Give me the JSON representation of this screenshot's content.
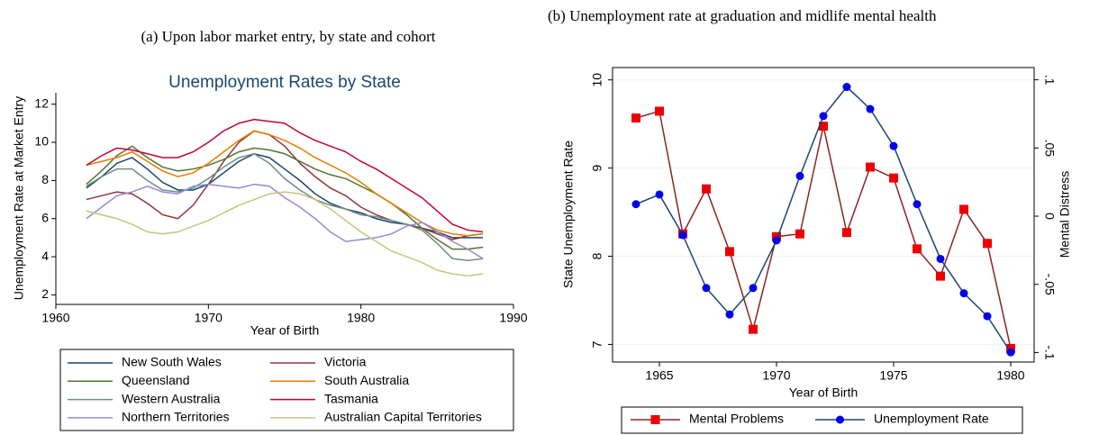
{
  "chart_data": [
    {
      "type": "line",
      "caption": "(a) Upon labor market entry, by state and cohort",
      "title": "Unemployment Rates by State",
      "x_label": "Year of Birth",
      "y_label": "Unemployment Rate at Market Entry",
      "xlim": [
        1960,
        1990
      ],
      "xticks": [
        1960,
        1970,
        1980,
        1990
      ],
      "ylim": [
        1.5,
        12.6
      ],
      "yticks": [
        2,
        4,
        6,
        8,
        10,
        12
      ],
      "grid": false,
      "x": [
        1962,
        1963,
        1964,
        1965,
        1966,
        1967,
        1968,
        1969,
        1970,
        1971,
        1972,
        1973,
        1974,
        1975,
        1976,
        1977,
        1978,
        1979,
        1980,
        1981,
        1982,
        1983,
        1984,
        1985,
        1986,
        1987,
        1988
      ],
      "series": [
        {
          "name": "New South Wales",
          "color": "#1a476f",
          "values": [
            7.6,
            8.2,
            8.9,
            9.2,
            8.6,
            7.9,
            7.5,
            7.5,
            7.8,
            8.4,
            9.0,
            9.4,
            9.2,
            8.6,
            8.0,
            7.3,
            6.8,
            6.5,
            6.3,
            6.0,
            5.8,
            5.7,
            5.5,
            5.3,
            5.0,
            5.0,
            5.0
          ]
        },
        {
          "name": "Victoria",
          "color": "#90353b",
          "values": [
            7.0,
            7.2,
            7.4,
            7.3,
            6.8,
            6.2,
            6.0,
            6.7,
            7.8,
            9.0,
            10.0,
            10.6,
            10.4,
            9.8,
            8.9,
            8.2,
            7.6,
            7.2,
            6.6,
            6.2,
            5.9,
            5.7,
            5.5,
            5.2,
            4.9,
            5.1,
            5.2
          ]
        },
        {
          "name": "Queensland",
          "color": "#55752f",
          "values": [
            7.8,
            8.5,
            9.3,
            9.8,
            9.2,
            8.7,
            8.5,
            8.6,
            8.8,
            9.1,
            9.5,
            9.7,
            9.6,
            9.4,
            9.0,
            8.6,
            8.3,
            8.1,
            7.7,
            7.3,
            6.8,
            6.2,
            5.5,
            4.9,
            4.4,
            4.4,
            4.5
          ]
        },
        {
          "name": "South Australia",
          "color": "#e37e00",
          "values": [
            8.8,
            9.0,
            9.2,
            9.5,
            9.0,
            8.5,
            8.2,
            8.4,
            8.9,
            9.5,
            10.1,
            10.6,
            10.4,
            10.1,
            9.7,
            9.2,
            8.8,
            8.4,
            7.9,
            7.3,
            6.8,
            6.3,
            5.8,
            5.4,
            5.2,
            5.1,
            5.2
          ]
        },
        {
          "name": "Western Australia",
          "color": "#6e8e84",
          "values": [
            7.7,
            8.2,
            8.6,
            8.6,
            8.0,
            7.5,
            7.4,
            7.6,
            8.1,
            8.7,
            9.2,
            9.4,
            8.9,
            8.1,
            7.5,
            7.0,
            6.7,
            6.5,
            6.2,
            6.1,
            5.9,
            5.7,
            5.4,
            4.7,
            3.9,
            3.8,
            3.9
          ]
        },
        {
          "name": "Tasmania",
          "color": "#c10534",
          "values": [
            8.8,
            9.3,
            9.7,
            9.6,
            9.4,
            9.2,
            9.2,
            9.5,
            10.0,
            10.6,
            11.0,
            11.2,
            11.1,
            11.0,
            10.5,
            10.1,
            9.8,
            9.5,
            9.0,
            8.6,
            8.1,
            7.6,
            7.1,
            6.4,
            5.7,
            5.4,
            5.3
          ]
        },
        {
          "name": "Northern Territories",
          "color": "#938dd2",
          "values": [
            6.0,
            6.6,
            7.2,
            7.4,
            7.7,
            7.4,
            7.3,
            7.7,
            7.8,
            7.7,
            7.6,
            7.8,
            7.7,
            7.1,
            6.6,
            6.0,
            5.3,
            4.8,
            4.9,
            5.0,
            5.2,
            5.6,
            5.8,
            5.3,
            4.8,
            4.4,
            3.9
          ]
        },
        {
          "name": "Australian Capital Territories",
          "color": "#cac27e",
          "values": [
            6.4,
            6.2,
            6.0,
            5.7,
            5.3,
            5.2,
            5.3,
            5.6,
            5.9,
            6.3,
            6.7,
            7.0,
            7.3,
            7.4,
            7.3,
            7.0,
            6.5,
            5.9,
            5.3,
            4.8,
            4.3,
            4.0,
            3.7,
            3.3,
            3.1,
            3.0,
            3.1
          ]
        }
      ]
    },
    {
      "type": "line",
      "caption": "(b) Unemployment rate at graduation and midlife mental health",
      "x_label": "Year of Birth",
      "y_label": "State Unemployment Rate",
      "y2_label": "Mental Distress",
      "xlim": [
        1963,
        1981
      ],
      "xticks": [
        1965,
        1970,
        1975,
        1980
      ],
      "ylim": [
        6.8,
        10.14
      ],
      "yticks": [
        7,
        8,
        9,
        10
      ],
      "y2lim": [
        -0.107,
        0.109
      ],
      "y2ticks": [
        {
          "value": -0.1,
          "label": "-.1"
        },
        {
          "value": -0.05,
          "label": "-.05"
        },
        0,
        {
          "value": 0.05,
          "label": ".05"
        },
        {
          "value": 0.1,
          "label": ".1"
        }
      ],
      "grid": true,
      "x": [
        1964,
        1965,
        1966,
        1967,
        1968,
        1969,
        1970,
        1971,
        1972,
        1973,
        1974,
        1975,
        1976,
        1977,
        1978,
        1979,
        1980
      ],
      "series": [
        {
          "name": "Mental Problems",
          "axis": "y2",
          "color": "#8b2323",
          "marker": "square",
          "marker_color": "#ee0000",
          "values": [
            0.072,
            0.077,
            -0.013,
            0.02,
            -0.026,
            -0.083,
            -0.015,
            -0.013,
            0.066,
            -0.012,
            0.036,
            0.028,
            -0.024,
            -0.044,
            0.005,
            -0.02,
            -0.097
          ]
        },
        {
          "name": "Unemployment Rate",
          "color": "#1a476f",
          "marker": "circle",
          "marker_color": "#0000ee",
          "values": [
            8.59,
            8.7,
            8.24,
            7.64,
            7.34,
            7.64,
            8.18,
            8.91,
            9.59,
            9.92,
            9.67,
            9.25,
            8.59,
            7.97,
            7.58,
            7.32,
            6.91
          ]
        }
      ]
    }
  ]
}
